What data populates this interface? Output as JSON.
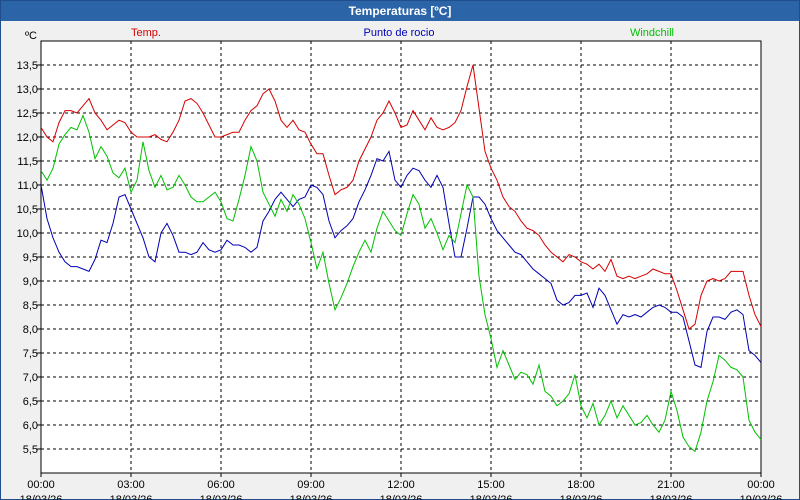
{
  "window": {
    "title": "Temperaturas [ºC]"
  },
  "chart_data": {
    "type": "line",
    "unit_label": "ºC",
    "ylim": [
      5.0,
      14.0
    ],
    "yticks": [
      "5,5",
      "6,0",
      "6,5",
      "7,0",
      "7,5",
      "8,0",
      "8,5",
      "9,0",
      "9,5",
      "10,0",
      "10,5",
      "11,0",
      "11,5",
      "12,0",
      "12,5",
      "13,0",
      "13,5"
    ],
    "xlim_hours": [
      0,
      24
    ],
    "xticks": [
      {
        "time": "00:00",
        "date": "18/03/26"
      },
      {
        "time": "03:00",
        "date": "18/03/26"
      },
      {
        "time": "06:00",
        "date": "18/03/26"
      },
      {
        "time": "09:00",
        "date": "18/03/26"
      },
      {
        "time": "12:00",
        "date": "18/03/26"
      },
      {
        "time": "15:00",
        "date": "18/03/26"
      },
      {
        "time": "18:00",
        "date": "18/03/26"
      },
      {
        "time": "21:00",
        "date": "18/03/26"
      },
      {
        "time": "00:00",
        "date": "19/03/26"
      }
    ],
    "grid": true,
    "legend_position": "top",
    "colors": {
      "Temp.": "#d40000",
      "Punto de rocio": "#0000b4",
      "Windchill": "#00c000"
    },
    "series": [
      {
        "name": "Temp.",
        "x": [
          0,
          0.2,
          0.4,
          0.6,
          0.8,
          1.0,
          1.2,
          1.4,
          1.6,
          1.8,
          2.0,
          2.2,
          2.4,
          2.6,
          2.8,
          3.0,
          3.2,
          3.4,
          3.6,
          3.8,
          4.0,
          4.2,
          4.4,
          4.6,
          4.8,
          5.0,
          5.2,
          5.4,
          5.6,
          5.8,
          6.0,
          6.2,
          6.4,
          6.6,
          6.8,
          7.0,
          7.2,
          7.4,
          7.6,
          7.8,
          8.0,
          8.2,
          8.4,
          8.6,
          8.8,
          9.0,
          9.2,
          9.4,
          9.6,
          9.8,
          10.0,
          10.2,
          10.4,
          10.6,
          10.8,
          11.0,
          11.2,
          11.4,
          11.6,
          11.8,
          12.0,
          12.2,
          12.4,
          12.6,
          12.8,
          13.0,
          13.2,
          13.4,
          13.6,
          13.8,
          14.0,
          14.2,
          14.4,
          14.6,
          14.8,
          15.0,
          15.2,
          15.4,
          15.6,
          15.8,
          16.0,
          16.2,
          16.4,
          16.6,
          16.8,
          17.0,
          17.2,
          17.4,
          17.6,
          17.8,
          18.0,
          18.2,
          18.4,
          18.6,
          18.8,
          19.0,
          19.2,
          19.4,
          19.6,
          19.8,
          20.0,
          20.2,
          20.4,
          20.6,
          20.8,
          21.0,
          21.2,
          21.4,
          21.6,
          21.8,
          22.0,
          22.2,
          22.4,
          22.6,
          22.8,
          23.0,
          23.2,
          23.4,
          23.6,
          23.8,
          24.0
        ],
        "values": [
          12.2,
          12.0,
          11.9,
          12.3,
          12.55,
          12.55,
          12.5,
          12.65,
          12.8,
          12.5,
          12.35,
          12.15,
          12.25,
          12.35,
          12.3,
          12.1,
          12.0,
          12.0,
          12.0,
          12.05,
          11.95,
          11.9,
          12.1,
          12.35,
          12.75,
          12.8,
          12.7,
          12.5,
          12.25,
          12.0,
          12.0,
          12.05,
          12.1,
          12.1,
          12.35,
          12.55,
          12.65,
          12.9,
          13.0,
          12.75,
          12.35,
          12.2,
          12.35,
          12.15,
          12.1,
          11.85,
          11.65,
          11.65,
          11.2,
          10.8,
          10.9,
          10.95,
          11.1,
          11.5,
          11.75,
          12.0,
          12.35,
          12.5,
          12.75,
          12.5,
          12.2,
          12.25,
          12.55,
          12.35,
          12.15,
          12.4,
          12.2,
          12.15,
          12.2,
          12.3,
          12.55,
          13.05,
          13.5,
          12.6,
          11.7,
          11.35,
          11.1,
          10.75,
          10.55,
          10.45,
          10.25,
          10.1,
          10.05,
          9.95,
          9.75,
          9.6,
          9.5,
          9.4,
          9.55,
          9.5,
          9.4,
          9.35,
          9.25,
          9.35,
          9.2,
          9.45,
          9.1,
          9.05,
          9.1,
          9.05,
          9.1,
          9.15,
          9.25,
          9.2,
          9.15,
          9.15,
          8.8,
          8.4,
          8.0,
          8.1,
          8.7,
          9.0,
          9.05,
          9.0,
          9.05,
          9.2,
          9.2,
          9.2,
          8.7,
          8.3,
          8.05
        ]
      },
      {
        "name": "Punto de rocio",
        "x": [
          0,
          0.2,
          0.4,
          0.6,
          0.8,
          1.0,
          1.2,
          1.4,
          1.6,
          1.8,
          2.0,
          2.2,
          2.4,
          2.6,
          2.8,
          3.0,
          3.2,
          3.4,
          3.6,
          3.8,
          4.0,
          4.2,
          4.4,
          4.6,
          4.8,
          5.0,
          5.2,
          5.4,
          5.6,
          5.8,
          6.0,
          6.2,
          6.4,
          6.6,
          6.8,
          7.0,
          7.2,
          7.4,
          7.6,
          7.8,
          8.0,
          8.2,
          8.4,
          8.6,
          8.8,
          9.0,
          9.2,
          9.4,
          9.6,
          9.8,
          10.0,
          10.2,
          10.4,
          10.6,
          10.8,
          11.0,
          11.2,
          11.4,
          11.6,
          11.8,
          12.0,
          12.2,
          12.4,
          12.6,
          12.8,
          13.0,
          13.2,
          13.4,
          13.6,
          13.8,
          14.0,
          14.2,
          14.4,
          14.6,
          14.8,
          15.0,
          15.2,
          15.4,
          15.6,
          15.8,
          16.0,
          16.2,
          16.4,
          16.6,
          16.8,
          17.0,
          17.2,
          17.4,
          17.6,
          17.8,
          18.0,
          18.2,
          18.4,
          18.6,
          18.8,
          19.0,
          19.2,
          19.4,
          19.6,
          19.8,
          20.0,
          20.2,
          20.4,
          20.6,
          20.8,
          21.0,
          21.2,
          21.4,
          21.6,
          21.8,
          22.0,
          22.2,
          22.4,
          22.6,
          22.8,
          23.0,
          23.2,
          23.4,
          23.6,
          23.8,
          24.0
        ],
        "values": [
          11.0,
          10.3,
          9.9,
          9.6,
          9.4,
          9.3,
          9.3,
          9.25,
          9.2,
          9.45,
          9.85,
          9.8,
          10.2,
          10.75,
          10.8,
          10.5,
          10.2,
          9.9,
          9.5,
          9.4,
          10.0,
          10.2,
          9.95,
          9.6,
          9.6,
          9.55,
          9.6,
          9.8,
          9.65,
          9.6,
          9.65,
          9.85,
          9.75,
          9.75,
          9.7,
          9.6,
          9.7,
          10.25,
          10.45,
          10.7,
          10.85,
          10.7,
          10.55,
          10.7,
          10.75,
          11.0,
          10.95,
          10.8,
          10.25,
          9.9,
          10.05,
          10.15,
          10.3,
          10.65,
          10.9,
          11.2,
          11.55,
          11.5,
          11.7,
          11.1,
          10.95,
          11.2,
          11.35,
          11.3,
          11.1,
          10.95,
          11.2,
          10.95,
          10.2,
          9.5,
          9.5,
          10.1,
          10.75,
          10.75,
          10.6,
          10.3,
          10.05,
          9.9,
          9.75,
          9.6,
          9.55,
          9.4,
          9.25,
          9.15,
          9.05,
          8.95,
          8.6,
          8.5,
          8.55,
          8.7,
          8.7,
          8.75,
          8.45,
          8.85,
          8.7,
          8.4,
          8.1,
          8.3,
          8.25,
          8.3,
          8.25,
          8.35,
          8.45,
          8.5,
          8.45,
          8.35,
          8.35,
          8.25,
          7.75,
          7.25,
          7.2,
          7.95,
          8.25,
          8.25,
          8.2,
          8.35,
          8.4,
          8.3,
          7.55,
          7.45,
          7.3
        ]
      },
      {
        "name": "Windchill",
        "x": [
          0,
          0.2,
          0.4,
          0.6,
          0.8,
          1.0,
          1.2,
          1.4,
          1.6,
          1.8,
          2.0,
          2.2,
          2.4,
          2.6,
          2.8,
          3.0,
          3.2,
          3.4,
          3.6,
          3.8,
          4.0,
          4.2,
          4.4,
          4.6,
          4.8,
          5.0,
          5.2,
          5.4,
          5.6,
          5.8,
          6.0,
          6.2,
          6.4,
          6.6,
          6.8,
          7.0,
          7.2,
          7.4,
          7.6,
          7.8,
          8.0,
          8.2,
          8.4,
          8.6,
          8.8,
          9.0,
          9.2,
          9.4,
          9.6,
          9.8,
          10.0,
          10.2,
          10.4,
          10.6,
          10.8,
          11.0,
          11.2,
          11.4,
          11.6,
          11.8,
          12.0,
          12.2,
          12.4,
          12.6,
          12.8,
          13.0,
          13.2,
          13.4,
          13.6,
          13.8,
          14.0,
          14.2,
          14.4,
          14.6,
          14.8,
          15.0,
          15.2,
          15.4,
          15.6,
          15.8,
          16.0,
          16.2,
          16.4,
          16.6,
          16.8,
          17.0,
          17.2,
          17.4,
          17.6,
          17.8,
          18.0,
          18.2,
          18.4,
          18.6,
          18.8,
          19.0,
          19.2,
          19.4,
          19.6,
          19.8,
          20.0,
          20.2,
          20.4,
          20.6,
          20.8,
          21.0,
          21.2,
          21.4,
          21.6,
          21.8,
          22.0,
          22.2,
          22.4,
          22.6,
          22.8,
          23.0,
          23.2,
          23.4,
          23.6,
          23.8,
          24.0
        ],
        "values": [
          11.3,
          11.1,
          11.35,
          11.85,
          12.05,
          12.2,
          12.15,
          12.45,
          12.1,
          11.55,
          11.8,
          11.6,
          11.25,
          11.15,
          11.35,
          10.85,
          11.1,
          11.9,
          11.3,
          10.95,
          11.2,
          10.9,
          10.95,
          11.2,
          11.0,
          10.75,
          10.65,
          10.65,
          10.75,
          10.85,
          10.65,
          10.3,
          10.25,
          10.7,
          11.2,
          11.8,
          11.5,
          10.85,
          10.6,
          10.35,
          10.7,
          10.45,
          10.8,
          10.6,
          10.3,
          9.8,
          9.25,
          9.6,
          8.95,
          8.4,
          8.65,
          8.95,
          9.3,
          9.6,
          9.85,
          9.6,
          10.1,
          10.45,
          10.25,
          10.05,
          9.95,
          10.4,
          10.8,
          10.6,
          10.1,
          10.3,
          10.0,
          9.65,
          9.95,
          9.8,
          10.4,
          11.0,
          10.75,
          9.1,
          8.3,
          7.8,
          7.2,
          7.55,
          7.25,
          6.95,
          7.1,
          7.05,
          6.85,
          7.25,
          6.7,
          6.6,
          6.4,
          6.5,
          6.65,
          7.05,
          6.4,
          6.15,
          6.45,
          6.0,
          6.2,
          6.5,
          6.15,
          6.4,
          6.2,
          6.0,
          6.05,
          6.2,
          6.0,
          5.85,
          6.1,
          6.7,
          6.3,
          5.75,
          5.55,
          5.45,
          5.85,
          6.5,
          6.9,
          7.45,
          7.35,
          7.2,
          7.15,
          7.0,
          6.1,
          5.85,
          5.7
        ]
      }
    ]
  }
}
